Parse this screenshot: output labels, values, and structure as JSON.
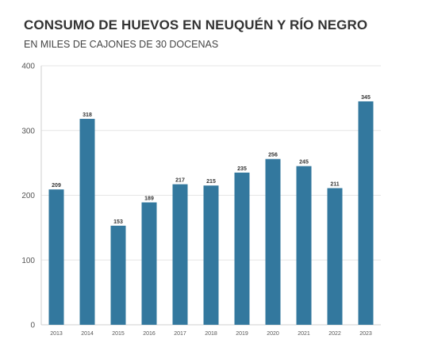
{
  "chart_data": {
    "type": "bar",
    "title": "CONSUMO DE HUEVOS EN NEUQUÉN Y RÍO NEGRO",
    "subtitle": "EN MILES DE CAJONES DE 30 DOCENAS",
    "categories": [
      "2013",
      "2014",
      "2015",
      "2016",
      "2017",
      "2018",
      "2019",
      "2020",
      "2021",
      "2022",
      "2023"
    ],
    "values": [
      209,
      318,
      153,
      189,
      217,
      215,
      235,
      256,
      245,
      211,
      345
    ],
    "ylim": [
      0,
      400
    ],
    "yticks": [
      0,
      100,
      200,
      300,
      400
    ],
    "grid": true,
    "bar_color": "#33789e"
  }
}
